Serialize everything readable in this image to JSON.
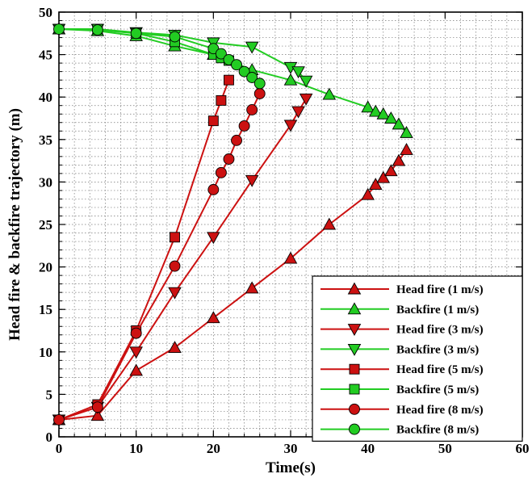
{
  "chart_data": {
    "type": "line",
    "xlabel": "Time(s)",
    "ylabel": "Head fire & backfire trajectory (m)",
    "xlim": [
      0,
      60
    ],
    "ylim": [
      0,
      50
    ],
    "x_ticks": [
      0,
      10,
      20,
      30,
      40,
      50,
      60
    ],
    "y_ticks": [
      0,
      5,
      10,
      15,
      20,
      25,
      30,
      35,
      40,
      45,
      50
    ],
    "grid": true,
    "legend_position": "bottom-right",
    "series": [
      {
        "name": "Head fire (1 m/s)",
        "color": "#cc1111",
        "marker": "triangle-up",
        "x": [
          0,
          5,
          10,
          15,
          20,
          25,
          30,
          35,
          40,
          41,
          42,
          43,
          44,
          45
        ],
        "y": [
          2,
          2.5,
          7.8,
          10.5,
          14,
          17.5,
          21,
          25,
          28.5,
          29.7,
          30.5,
          31.3,
          32.5,
          33.8
        ]
      },
      {
        "name": "Backfire (1 m/s)",
        "color": "#22cc22",
        "marker": "triangle-up",
        "x": [
          0,
          5,
          10,
          15,
          20,
          25,
          30,
          35,
          40,
          41,
          42,
          43,
          44,
          45
        ],
        "y": [
          48,
          47.8,
          47.2,
          46,
          45,
          43.2,
          42,
          40.3,
          38.8,
          38.3,
          38,
          37.5,
          36.8,
          35.8
        ]
      },
      {
        "name": "Head fire (3 m/s)",
        "color": "#cc1111",
        "marker": "triangle-down",
        "x": [
          0,
          5,
          10,
          15,
          20,
          25,
          30,
          31,
          32
        ],
        "y": [
          2,
          3.5,
          10,
          17,
          23.5,
          30.2,
          36.7,
          38.3,
          39.8
        ]
      },
      {
        "name": "Backfire (3 m/s)",
        "color": "#22cc22",
        "marker": "triangle-down",
        "x": [
          0,
          5,
          10,
          15,
          20,
          25,
          30,
          31,
          32
        ],
        "y": [
          48,
          48,
          47.6,
          47.3,
          46.4,
          45.9,
          43.5,
          43,
          41.9
        ]
      },
      {
        "name": "Head fire (5 m/s)",
        "color": "#cc1111",
        "marker": "square",
        "x": [
          0,
          5,
          10,
          15,
          20,
          21,
          22
        ],
        "y": [
          2,
          3.8,
          12.5,
          23.5,
          37.2,
          39.6,
          42
        ]
      },
      {
        "name": "Backfire (5 m/s)",
        "color": "#22cc22",
        "marker": "square",
        "x": [
          0,
          5,
          10,
          15,
          20,
          21,
          22
        ],
        "y": [
          48,
          48,
          47.5,
          46.5,
          45,
          44.6,
          44.3
        ]
      },
      {
        "name": "Head fire (8 m/s)",
        "color": "#cc1111",
        "marker": "circle",
        "x": [
          0,
          5,
          10,
          15,
          20,
          21,
          22,
          23,
          24,
          25,
          26
        ],
        "y": [
          2,
          3.5,
          12.2,
          20.1,
          29.1,
          31.1,
          32.7,
          34.9,
          36.6,
          38.5,
          40.4
        ]
      },
      {
        "name": "Backfire (8 m/s)",
        "color": "#22cc22",
        "marker": "circle",
        "x": [
          0,
          5,
          10,
          15,
          20,
          21,
          22,
          23,
          24,
          25,
          26
        ],
        "y": [
          48,
          47.9,
          47.5,
          47.1,
          45.7,
          45.1,
          44.4,
          43.8,
          43,
          42.3,
          41.6
        ]
      }
    ]
  }
}
